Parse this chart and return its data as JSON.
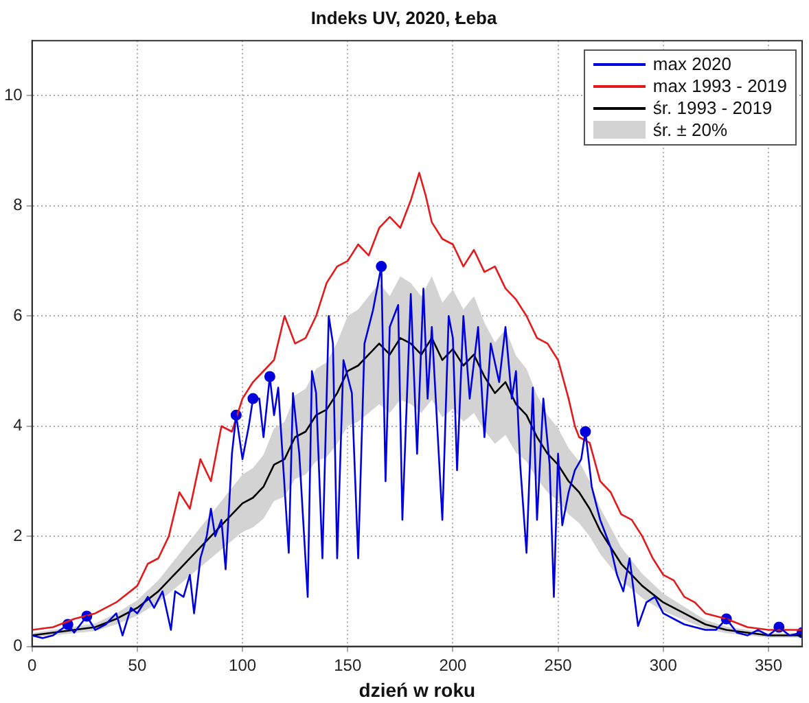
{
  "chart_data": {
    "type": "line",
    "title": "Indeks UV, 2020, Łeba",
    "xlabel": "dzień w roku",
    "xlim": [
      0,
      366
    ],
    "xticks": [
      0,
      50,
      100,
      150,
      200,
      250,
      300,
      350
    ],
    "ylim": [
      0,
      11
    ],
    "yticks": [
      0,
      2,
      4,
      6,
      8,
      10
    ],
    "grid": true,
    "legend": "top right",
    "annotations": [
      "śr. ± 20%"
    ],
    "series": [
      {
        "name": "śr. 1993 - 2019",
        "color": "#000000",
        "x": [
          0,
          20,
          30,
          40,
          50,
          60,
          70,
          80,
          90,
          95,
          100,
          105,
          110,
          115,
          120,
          125,
          130,
          135,
          140,
          145,
          150,
          155,
          160,
          165,
          170,
          175,
          180,
          185,
          190,
          195,
          200,
          205,
          210,
          215,
          220,
          225,
          230,
          235,
          240,
          245,
          250,
          255,
          260,
          265,
          270,
          275,
          280,
          285,
          290,
          300,
          310,
          320,
          330,
          340,
          350,
          366
        ],
        "values": [
          0.2,
          0.3,
          0.35,
          0.5,
          0.7,
          1.0,
          1.4,
          1.8,
          2.2,
          2.4,
          2.6,
          2.7,
          2.9,
          3.3,
          3.4,
          3.8,
          3.9,
          4.2,
          4.3,
          4.6,
          5.0,
          5.1,
          5.3,
          5.5,
          5.3,
          5.6,
          5.5,
          5.3,
          5.6,
          5.2,
          5.4,
          5.1,
          5.3,
          4.9,
          4.6,
          4.8,
          4.4,
          4.2,
          3.8,
          3.5,
          3.3,
          3.0,
          2.8,
          2.5,
          2.1,
          1.8,
          1.5,
          1.3,
          1.1,
          0.8,
          0.6,
          0.4,
          0.3,
          0.25,
          0.2,
          0.2
        ],
        "lower": [
          0.16,
          0.24,
          0.28,
          0.4,
          0.56,
          0.8,
          1.12,
          1.44,
          1.76,
          1.92,
          2.08,
          2.16,
          2.32,
          2.64,
          2.72,
          3.04,
          3.12,
          3.36,
          3.44,
          3.68,
          4.0,
          4.08,
          4.24,
          4.4,
          4.24,
          4.48,
          4.4,
          4.24,
          4.48,
          4.16,
          4.32,
          4.08,
          4.24,
          3.92,
          3.68,
          3.84,
          3.52,
          3.36,
          3.04,
          2.8,
          2.64,
          2.4,
          2.24,
          2.0,
          1.68,
          1.44,
          1.2,
          1.04,
          0.88,
          0.64,
          0.48,
          0.32,
          0.24,
          0.2,
          0.16,
          0.16
        ],
        "upper": [
          0.24,
          0.36,
          0.42,
          0.6,
          0.84,
          1.2,
          1.68,
          2.16,
          2.64,
          2.88,
          3.12,
          3.24,
          3.48,
          3.96,
          4.08,
          4.56,
          4.68,
          5.04,
          5.16,
          5.52,
          6.0,
          6.12,
          6.36,
          6.6,
          6.36,
          6.72,
          6.6,
          6.36,
          6.72,
          6.24,
          6.48,
          6.12,
          6.36,
          5.88,
          5.52,
          5.76,
          5.28,
          5.04,
          4.56,
          4.2,
          3.96,
          3.6,
          3.36,
          3.0,
          2.52,
          2.16,
          1.8,
          1.56,
          1.32,
          0.96,
          0.72,
          0.48,
          0.36,
          0.3,
          0.24,
          0.24
        ]
      },
      {
        "name": "max 1993 - 2019",
        "color": "#e31a1c",
        "x": [
          0,
          10,
          20,
          30,
          40,
          50,
          55,
          60,
          65,
          70,
          75,
          80,
          85,
          90,
          95,
          100,
          105,
          110,
          115,
          120,
          125,
          130,
          135,
          140,
          145,
          150,
          155,
          160,
          165,
          170,
          175,
          180,
          184,
          187,
          190,
          195,
          200,
          205,
          210,
          215,
          220,
          225,
          230,
          235,
          240,
          245,
          250,
          255,
          258,
          260,
          265,
          270,
          275,
          280,
          285,
          290,
          295,
          300,
          305,
          310,
          315,
          320,
          330,
          340,
          350,
          366
        ],
        "values": [
          0.3,
          0.35,
          0.5,
          0.6,
          0.8,
          1.1,
          1.5,
          1.6,
          2.0,
          2.8,
          2.5,
          3.4,
          3.0,
          4.0,
          3.9,
          4.5,
          4.8,
          5.0,
          5.2,
          6.0,
          5.5,
          5.6,
          6.0,
          6.6,
          6.9,
          7.0,
          7.3,
          7.1,
          7.6,
          7.8,
          7.6,
          8.1,
          8.6,
          8.2,
          7.7,
          7.4,
          7.3,
          6.9,
          7.2,
          6.8,
          6.9,
          6.5,
          6.3,
          6.0,
          5.6,
          5.5,
          5.2,
          4.5,
          4.0,
          3.8,
          3.7,
          3.0,
          2.8,
          2.4,
          2.3,
          2.0,
          1.6,
          1.3,
          1.2,
          0.9,
          0.8,
          0.6,
          0.5,
          0.35,
          0.3,
          0.3
        ]
      },
      {
        "name": "max 2020",
        "color": "#0000dd",
        "x": [
          0,
          5,
          10,
          17,
          20,
          26,
          30,
          35,
          40,
          43,
          47,
          50,
          55,
          58,
          62,
          66,
          68,
          72,
          75,
          77,
          80,
          83,
          85,
          87,
          90,
          92,
          95,
          97,
          100,
          103,
          105,
          108,
          110,
          113,
          115,
          117,
          122,
          124,
          127,
          131,
          133,
          135,
          138,
          141,
          143,
          145,
          148,
          152,
          155,
          158,
          162,
          166,
          168,
          170,
          174,
          176,
          180,
          183,
          186,
          188,
          190,
          195,
          198,
          200,
          202,
          205,
          208,
          212,
          215,
          218,
          222,
          225,
          228,
          230,
          232,
          235,
          238,
          240,
          243,
          246,
          248,
          250,
          252,
          255,
          258,
          261,
          263,
          266,
          270,
          275,
          278,
          281,
          284,
          288,
          292,
          296,
          300,
          305,
          310,
          315,
          320,
          325,
          330,
          335,
          340,
          345,
          350,
          355,
          360,
          366
        ],
        "values": [
          0.2,
          0.15,
          0.2,
          0.4,
          0.25,
          0.55,
          0.3,
          0.4,
          0.6,
          0.2,
          0.7,
          0.6,
          0.9,
          0.7,
          1.0,
          0.3,
          1.0,
          0.9,
          1.3,
          0.6,
          1.6,
          2.0,
          2.5,
          2.0,
          2.3,
          1.4,
          3.5,
          4.2,
          3.4,
          4.0,
          4.5,
          4.5,
          3.8,
          4.9,
          4.2,
          4.7,
          1.7,
          4.6,
          3.5,
          0.9,
          5.0,
          4.6,
          1.6,
          6.0,
          5.5,
          1.6,
          5.2,
          4.6,
          1.6,
          5.5,
          6.1,
          6.9,
          3.0,
          5.8,
          6.2,
          2.3,
          6.4,
          3.5,
          6.5,
          4.5,
          5.8,
          2.3,
          6.0,
          5.6,
          3.2,
          6.0,
          4.5,
          5.8,
          3.8,
          5.5,
          4.8,
          5.8,
          4.5,
          5.0,
          3.3,
          1.7,
          4.7,
          2.3,
          4.5,
          3.3,
          0.9,
          3.5,
          2.2,
          2.8,
          3.2,
          3.4,
          3.9,
          2.9,
          2.3,
          1.8,
          1.3,
          1.0,
          1.6,
          0.37,
          0.8,
          0.9,
          0.6,
          0.5,
          0.4,
          0.35,
          0.3,
          0.3,
          0.5,
          0.25,
          0.2,
          0.3,
          0.2,
          0.35,
          0.2,
          0.25
        ]
      },
      {
        "type": "scatter",
        "color": "#0000dd",
        "marker": "circle",
        "x": [
          17,
          26,
          97,
          105,
          113,
          166,
          263,
          330,
          355,
          366
        ],
        "values": [
          0.4,
          0.55,
          4.2,
          4.5,
          4.9,
          6.9,
          3.9,
          0.5,
          0.35,
          0.25
        ]
      }
    ]
  }
}
